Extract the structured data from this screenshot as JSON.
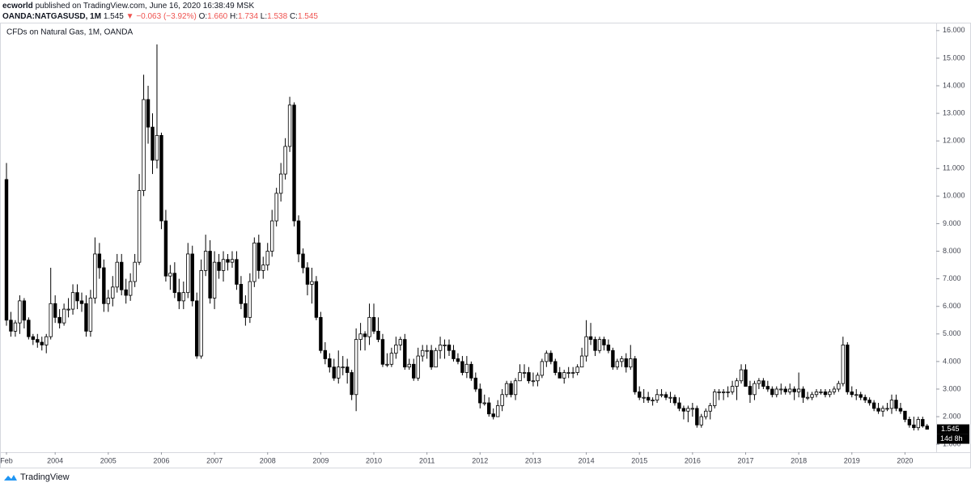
{
  "header": {
    "author": "ecworld",
    "published": "published on TradingView.com, June 16, 2020 16:38:49 MSK",
    "symbol": "OANDA:NATGASUSD, 1M",
    "last": "1.545",
    "change": "▼ −0.063 (−3.92%)",
    "ohlc": [
      {
        "label": "O:",
        "value": "1.660"
      },
      {
        "label": "H:",
        "value": "1.734"
      },
      {
        "label": "L:",
        "value": "1.538"
      },
      {
        "label": "C:",
        "value": "1.545"
      }
    ]
  },
  "countdown": "14d 8h",
  "footer": {
    "brand": "TradingView"
  },
  "chart_data": {
    "type": "candlestick",
    "title": "CFDs on Natural Gas, 1M, OANDA",
    "up_color": "#ffffff",
    "down_color": "#000000",
    "edge_color": "#000000",
    "grid": false,
    "ylim": [
      0.74,
      16.23
    ],
    "yticks": [
      {
        "value": 1,
        "label": "1.000"
      },
      {
        "value": 2,
        "label": "2.000"
      },
      {
        "value": 3,
        "label": "3.000"
      },
      {
        "value": 4,
        "label": "4.000"
      },
      {
        "value": 5,
        "label": "5.000"
      },
      {
        "value": 6,
        "label": "6.000"
      },
      {
        "value": 7,
        "label": "7.000"
      },
      {
        "value": 8,
        "label": "8.000"
      },
      {
        "value": 9,
        "label": "9.000"
      },
      {
        "value": 10,
        "label": "10.000"
      },
      {
        "value": 11,
        "label": "11.000"
      },
      {
        "value": 12,
        "label": "12.000"
      },
      {
        "value": 13,
        "label": "13.000"
      },
      {
        "value": 14,
        "label": "14.000"
      },
      {
        "value": 15,
        "label": "15.000"
      },
      {
        "value": 16,
        "label": "16.000"
      }
    ],
    "categories": [
      "Feb",
      null,
      null,
      null,
      null,
      null,
      null,
      null,
      null,
      null,
      null,
      "2004",
      null,
      null,
      null,
      null,
      null,
      null,
      null,
      null,
      null,
      null,
      null,
      "2005",
      null,
      null,
      null,
      null,
      null,
      null,
      null,
      null,
      null,
      null,
      null,
      "2006",
      null,
      null,
      null,
      null,
      null,
      null,
      null,
      null,
      null,
      null,
      null,
      "2007",
      null,
      null,
      null,
      null,
      null,
      null,
      null,
      null,
      null,
      null,
      null,
      "2008",
      null,
      null,
      null,
      null,
      null,
      null,
      null,
      null,
      null,
      null,
      null,
      "2009",
      null,
      null,
      null,
      null,
      null,
      null,
      null,
      null,
      null,
      null,
      null,
      "2010",
      null,
      null,
      null,
      null,
      null,
      null,
      null,
      null,
      null,
      null,
      null,
      "2011",
      null,
      null,
      null,
      null,
      null,
      null,
      null,
      null,
      null,
      null,
      null,
      "2012",
      null,
      null,
      null,
      null,
      null,
      null,
      null,
      null,
      null,
      null,
      null,
      "2013",
      null,
      null,
      null,
      null,
      null,
      null,
      null,
      null,
      null,
      null,
      null,
      "2014",
      null,
      null,
      null,
      null,
      null,
      null,
      null,
      null,
      null,
      null,
      null,
      "2015",
      null,
      null,
      null,
      null,
      null,
      null,
      null,
      null,
      null,
      null,
      null,
      "2016",
      null,
      null,
      null,
      null,
      null,
      null,
      null,
      null,
      null,
      null,
      null,
      "2017",
      null,
      null,
      null,
      null,
      null,
      null,
      null,
      null,
      null,
      null,
      null,
      "2018",
      null,
      null,
      null,
      null,
      null,
      null,
      null,
      null,
      null,
      null,
      null,
      "2019",
      null,
      null,
      null,
      null,
      null,
      null,
      null,
      null,
      null,
      null,
      null,
      "2020",
      null,
      null,
      null,
      null,
      null
    ],
    "open": [
      10.6,
      5.5,
      5.1,
      5.4,
      6.2,
      5.5,
      4.9,
      4.8,
      4.7,
      4.6,
      4.9,
      6.1,
      5.6,
      5.4,
      5.9,
      5.9,
      6.5,
      6.2,
      6.1,
      5.1,
      6.3,
      7.9,
      7.4,
      6.1,
      6.3,
      6.7,
      7.6,
      6.6,
      6.4,
      6.9,
      7.6,
      10.2,
      13.5,
      12.5,
      11.3,
      12.2,
      9.1,
      7.1,
      7.2,
      6.5,
      6.2,
      6.5,
      7.9,
      6.2,
      4.2,
      7.3,
      8.0,
      6.3,
      7.6,
      7.3,
      7.7,
      7.6,
      7.7,
      6.8,
      6.1,
      5.6,
      6.9,
      8.3,
      7.3,
      7.5,
      8.0,
      9.1,
      10.1,
      10.8,
      11.8,
      13.3,
      9.1,
      7.9,
      7.4,
      6.8,
      6.9,
      5.6,
      4.4,
      4.1,
      3.8,
      3.4,
      3.8,
      3.8,
      3.6,
      2.8,
      4.8,
      5.0,
      4.9,
      5.6,
      5.1,
      4.8,
      3.9,
      3.9,
      4.3,
      4.6,
      4.8,
      3.8,
      3.9,
      3.4,
      4.2,
      4.4,
      4.4,
      3.8,
      4.4,
      4.6,
      4.6,
      4.4,
      4.1,
      4.0,
      3.6,
      3.9,
      3.4,
      3.0,
      2.5,
      2.5,
      2.1,
      2.0,
      2.4,
      2.8,
      3.2,
      2.8,
      3.3,
      3.6,
      3.6,
      3.3,
      3.3,
      3.5,
      4.0,
      4.3,
      4.0,
      3.6,
      3.4,
      3.6,
      3.6,
      3.6,
      3.8,
      4.2,
      4.9,
      4.8,
      4.4,
      4.8,
      4.6,
      4.4,
      3.8,
      4.0,
      4.1,
      3.8,
      4.1,
      2.9,
      2.7,
      2.7,
      2.6,
      2.6,
      2.8,
      2.8,
      2.7,
      2.7,
      2.5,
      2.3,
      2.2,
      2.3,
      2.3,
      1.7,
      2.0,
      2.2,
      2.4,
      2.9,
      2.9,
      2.9,
      2.9,
      3.1,
      3.3,
      3.7,
      3.1,
      2.8,
      3.2,
      3.3,
      3.1,
      3.0,
      2.8,
      3.0,
      3.0,
      2.9,
      3.0,
      2.9,
      3.0,
      2.7,
      2.7,
      2.8,
      2.9,
      2.9,
      2.8,
      2.9,
      3.0,
      3.2,
      4.6,
      2.9,
      2.8,
      2.8,
      2.7,
      2.6,
      2.5,
      2.3,
      2.2,
      2.3,
      2.3,
      2.6,
      2.3,
      2.2,
      1.9,
      1.7,
      1.6,
      1.9,
      1.66
    ],
    "high": [
      11.2,
      5.8,
      5.5,
      6.4,
      6.3,
      5.6,
      5.0,
      5.0,
      4.9,
      5.0,
      7.4,
      6.4,
      5.9,
      6.1,
      6.3,
      6.8,
      6.8,
      6.5,
      6.4,
      6.6,
      8.5,
      8.3,
      7.7,
      6.6,
      7.1,
      7.9,
      7.9,
      7.0,
      7.2,
      7.9,
      10.8,
      14.4,
      14.0,
      13.0,
      15.5,
      12.3,
      9.5,
      7.5,
      7.6,
      7.0,
      6.9,
      8.3,
      8.2,
      6.5,
      7.7,
      8.6,
      8.4,
      8.0,
      7.9,
      8.0,
      7.9,
      8.0,
      8.0,
      7.1,
      6.4,
      7.2,
      8.5,
      8.6,
      7.8,
      8.3,
      9.5,
      10.3,
      11.2,
      12.1,
      13.6,
      13.4,
      9.3,
      8.1,
      7.6,
      7.4,
      7.1,
      5.8,
      4.7,
      4.3,
      4.1,
      4.4,
      4.2,
      4.1,
      3.7,
      5.2,
      5.4,
      5.1,
      6.1,
      6.1,
      5.6,
      5.0,
      4.3,
      4.5,
      4.9,
      4.9,
      5.0,
      4.1,
      4.1,
      4.5,
      4.6,
      4.6,
      4.6,
      4.5,
      4.9,
      4.8,
      4.8,
      4.6,
      4.3,
      4.2,
      4.2,
      4.0,
      3.6,
      3.2,
      2.8,
      2.7,
      2.3,
      2.6,
      3.0,
      3.3,
      3.3,
      3.4,
      3.9,
      3.9,
      3.8,
      3.6,
      3.6,
      4.1,
      4.4,
      4.4,
      4.1,
      3.8,
      3.7,
      3.8,
      3.8,
      3.9,
      4.5,
      5.5,
      5.4,
      4.9,
      4.9,
      4.9,
      4.8,
      4.5,
      4.1,
      4.2,
      4.3,
      4.6,
      4.2,
      3.1,
      3.0,
      2.9,
      2.7,
      3.0,
      3.0,
      2.9,
      2.9,
      2.8,
      2.7,
      2.4,
      2.4,
      2.5,
      2.4,
      2.1,
      2.3,
      2.5,
      3.0,
      3.0,
      3.0,
      3.1,
      3.3,
      3.4,
      3.9,
      3.9,
      3.3,
      3.3,
      3.4,
      3.4,
      3.3,
      3.1,
      3.1,
      3.2,
      3.1,
      3.2,
      3.1,
      3.6,
      3.1,
      2.9,
      2.9,
      3.0,
      3.0,
      3.0,
      3.0,
      3.1,
      3.3,
      4.9,
      4.7,
      3.1,
      3.0,
      2.9,
      2.8,
      2.7,
      2.6,
      2.5,
      2.4,
      2.5,
      2.8,
      2.8,
      2.5,
      2.2,
      2.0,
      2.0,
      2.0,
      2.0,
      1.734
    ],
    "low": [
      5.3,
      4.9,
      4.9,
      5.0,
      5.2,
      4.8,
      4.6,
      4.5,
      4.4,
      4.3,
      4.8,
      5.4,
      5.2,
      5.3,
      5.6,
      5.7,
      5.9,
      5.8,
      4.9,
      4.9,
      6.1,
      7.0,
      5.8,
      5.8,
      6.0,
      6.5,
      6.4,
      6.1,
      6.2,
      6.7,
      7.5,
      10.0,
      11.9,
      10.8,
      11.0,
      8.8,
      6.9,
      6.6,
      6.3,
      5.9,
      5.9,
      6.3,
      6.0,
      4.1,
      4.1,
      7.1,
      6.1,
      5.9,
      7.0,
      6.9,
      7.3,
      7.4,
      6.6,
      5.9,
      5.3,
      5.4,
      6.7,
      7.0,
      7.0,
      7.3,
      7.8,
      8.9,
      9.8,
      10.6,
      11.6,
      8.9,
      7.6,
      7.2,
      6.4,
      6.1,
      5.5,
      4.3,
      3.9,
      3.6,
      3.3,
      3.2,
      3.5,
      3.2,
      2.6,
      2.2,
      4.4,
      4.4,
      4.6,
      5.0,
      4.7,
      3.8,
      3.8,
      3.8,
      4.1,
      4.4,
      3.7,
      3.7,
      3.3,
      3.3,
      4.0,
      4.1,
      3.7,
      3.8,
      4.1,
      4.1,
      4.2,
      4.0,
      3.9,
      3.5,
      3.4,
      3.3,
      2.9,
      2.3,
      2.4,
      2.0,
      1.9,
      2.0,
      2.2,
      2.7,
      2.7,
      2.6,
      3.3,
      3.4,
      3.2,
      3.1,
      3.1,
      3.4,
      3.8,
      3.9,
      3.5,
      3.4,
      3.2,
      3.4,
      3.4,
      3.5,
      3.8,
      4.0,
      4.6,
      4.2,
      4.3,
      4.4,
      4.3,
      3.7,
      3.7,
      3.8,
      3.6,
      3.7,
      2.8,
      2.6,
      2.5,
      2.5,
      2.4,
      2.5,
      2.7,
      2.6,
      2.5,
      2.4,
      2.2,
      1.9,
      1.8,
      2.0,
      1.6,
      1.6,
      1.9,
      1.9,
      2.3,
      2.6,
      2.6,
      2.7,
      2.8,
      2.6,
      3.2,
      3.1,
      2.5,
      2.6,
      3.0,
      3.0,
      2.9,
      2.7,
      2.7,
      2.8,
      2.8,
      2.8,
      2.6,
      2.7,
      2.5,
      2.6,
      2.6,
      2.7,
      2.8,
      2.7,
      2.7,
      2.8,
      2.9,
      3.1,
      2.8,
      2.7,
      2.6,
      2.6,
      2.5,
      2.4,
      2.2,
      2.1,
      2.0,
      2.2,
      2.1,
      2.2,
      2.1,
      1.8,
      1.6,
      1.5,
      1.5,
      1.6,
      1.538
    ],
    "close": [
      5.5,
      5.1,
      5.4,
      6.2,
      5.5,
      4.9,
      4.8,
      4.7,
      4.6,
      4.9,
      6.1,
      5.6,
      5.4,
      5.9,
      5.9,
      6.5,
      6.2,
      6.1,
      5.1,
      6.3,
      7.9,
      7.4,
      6.1,
      6.3,
      6.7,
      7.6,
      6.6,
      6.4,
      6.9,
      7.6,
      10.2,
      13.5,
      12.5,
      11.3,
      12.2,
      9.1,
      7.1,
      7.2,
      6.5,
      6.2,
      6.5,
      7.9,
      6.2,
      4.2,
      7.3,
      8.0,
      6.3,
      7.6,
      7.3,
      7.7,
      7.6,
      7.7,
      6.8,
      6.1,
      5.6,
      6.9,
      8.3,
      7.3,
      7.5,
      8.0,
      9.1,
      10.1,
      10.8,
      11.8,
      13.3,
      9.1,
      7.9,
      7.4,
      6.8,
      6.9,
      5.6,
      4.4,
      4.1,
      3.8,
      3.4,
      3.8,
      3.8,
      3.6,
      2.8,
      4.8,
      5.0,
      4.9,
      5.6,
      5.1,
      4.8,
      3.9,
      3.9,
      4.3,
      4.6,
      4.8,
      3.8,
      3.9,
      3.4,
      4.2,
      4.4,
      4.4,
      3.8,
      4.4,
      4.6,
      4.6,
      4.4,
      4.1,
      4.0,
      3.6,
      3.9,
      3.4,
      3.0,
      2.5,
      2.5,
      2.1,
      2.0,
      2.4,
      2.8,
      3.2,
      2.8,
      3.3,
      3.6,
      3.6,
      3.3,
      3.3,
      3.5,
      4.0,
      4.3,
      4.0,
      3.6,
      3.4,
      3.6,
      3.6,
      3.6,
      3.8,
      4.2,
      4.9,
      4.8,
      4.4,
      4.8,
      4.6,
      4.4,
      3.8,
      4.0,
      4.1,
      3.8,
      4.1,
      2.9,
      2.7,
      2.7,
      2.6,
      2.6,
      2.8,
      2.8,
      2.7,
      2.7,
      2.5,
      2.3,
      2.2,
      2.3,
      2.3,
      1.7,
      2.0,
      2.2,
      2.4,
      2.9,
      2.9,
      2.9,
      2.9,
      3.1,
      3.3,
      3.7,
      3.1,
      2.8,
      3.2,
      3.3,
      3.1,
      3.0,
      2.8,
      3.0,
      3.0,
      2.9,
      3.0,
      2.9,
      3.0,
      2.7,
      2.7,
      2.8,
      2.9,
      2.9,
      2.8,
      2.9,
      3.0,
      3.2,
      4.6,
      2.9,
      2.8,
      2.8,
      2.7,
      2.6,
      2.5,
      2.3,
      2.2,
      2.3,
      2.3,
      2.6,
      2.3,
      2.2,
      1.9,
      1.7,
      1.6,
      1.9,
      1.66,
      1.545
    ]
  }
}
